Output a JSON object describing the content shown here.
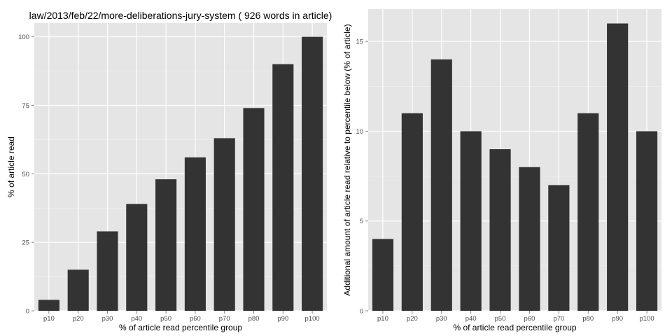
{
  "chart_data": [
    {
      "type": "bar",
      "title": "law/2013/feb/22/more-deliberations-jury-system ( 926 words in article)",
      "xlabel": "% of article read percentile group",
      "ylabel": "% of article read",
      "categories": [
        "p10",
        "p20",
        "p30",
        "p40",
        "p50",
        "p60",
        "p70",
        "p80",
        "p90",
        "p100"
      ],
      "values": [
        4,
        15,
        29,
        39,
        48,
        56,
        63,
        74,
        90,
        100
      ],
      "ylim": [
        0,
        105
      ],
      "yticks": [
        0,
        25,
        50,
        75,
        100
      ],
      "ytick_labels": [
        "0",
        "25",
        "50",
        "75",
        "100"
      ],
      "grid": true,
      "colors": {
        "bar": "#333333",
        "panel": "#e5e5e5",
        "grid": "#ffffff",
        "grid_minor": "#f2f2f2"
      }
    },
    {
      "type": "bar",
      "title": "",
      "xlabel": "% of article read percentile group",
      "ylabel": "Additional amount of article read relative to percentile below (% of article)",
      "categories": [
        "p10",
        "p20",
        "p30",
        "p40",
        "p50",
        "p60",
        "p70",
        "p80",
        "p90",
        "p100"
      ],
      "values": [
        4,
        11,
        14,
        10,
        9,
        8,
        7,
        11,
        16,
        10
      ],
      "ylim": [
        0,
        16.8
      ],
      "yticks": [
        0,
        5,
        10,
        15
      ],
      "ytick_labels": [
        "0",
        "5",
        "10",
        "15"
      ],
      "grid": true,
      "colors": {
        "bar": "#333333",
        "panel": "#e5e5e5",
        "grid": "#ffffff",
        "grid_minor": "#f2f2f2"
      }
    }
  ]
}
